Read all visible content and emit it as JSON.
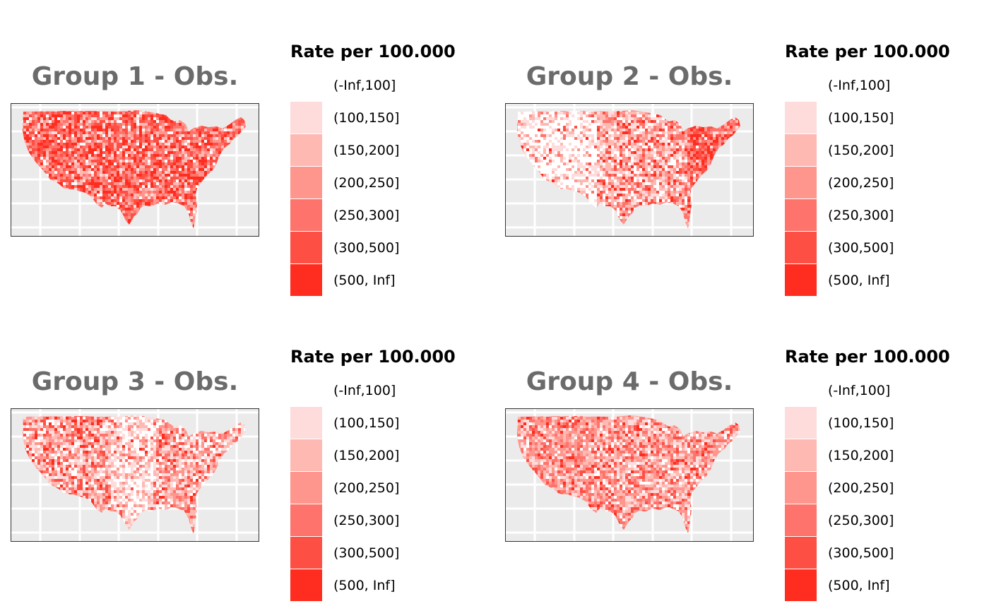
{
  "legend": {
    "title": "Rate per 100.000",
    "items": [
      {
        "label": "(-Inf,100]",
        "color": "#ffffff"
      },
      {
        "label": "(100,150]",
        "color": "#fedcdb"
      },
      {
        "label": "(150,200]",
        "color": "#feb9b3"
      },
      {
        "label": "(200,250]",
        "color": "#fe968e"
      },
      {
        "label": "(250,300]",
        "color": "#fe736b"
      },
      {
        "label": "(300,500]",
        "color": "#fe4f45"
      },
      {
        "label": "(500, Inf]",
        "color": "#fe2d1f"
      }
    ]
  },
  "panels": [
    {
      "title": "Group 1 - Obs."
    },
    {
      "title": "Group 2 - Obs."
    },
    {
      "title": "Group 3 - Obs."
    },
    {
      "title": "Group 4 - Obs."
    }
  ],
  "colors": {
    "map_background": "#ebebeb",
    "grid": "#ffffff",
    "title": "#6b6b6b"
  }
}
